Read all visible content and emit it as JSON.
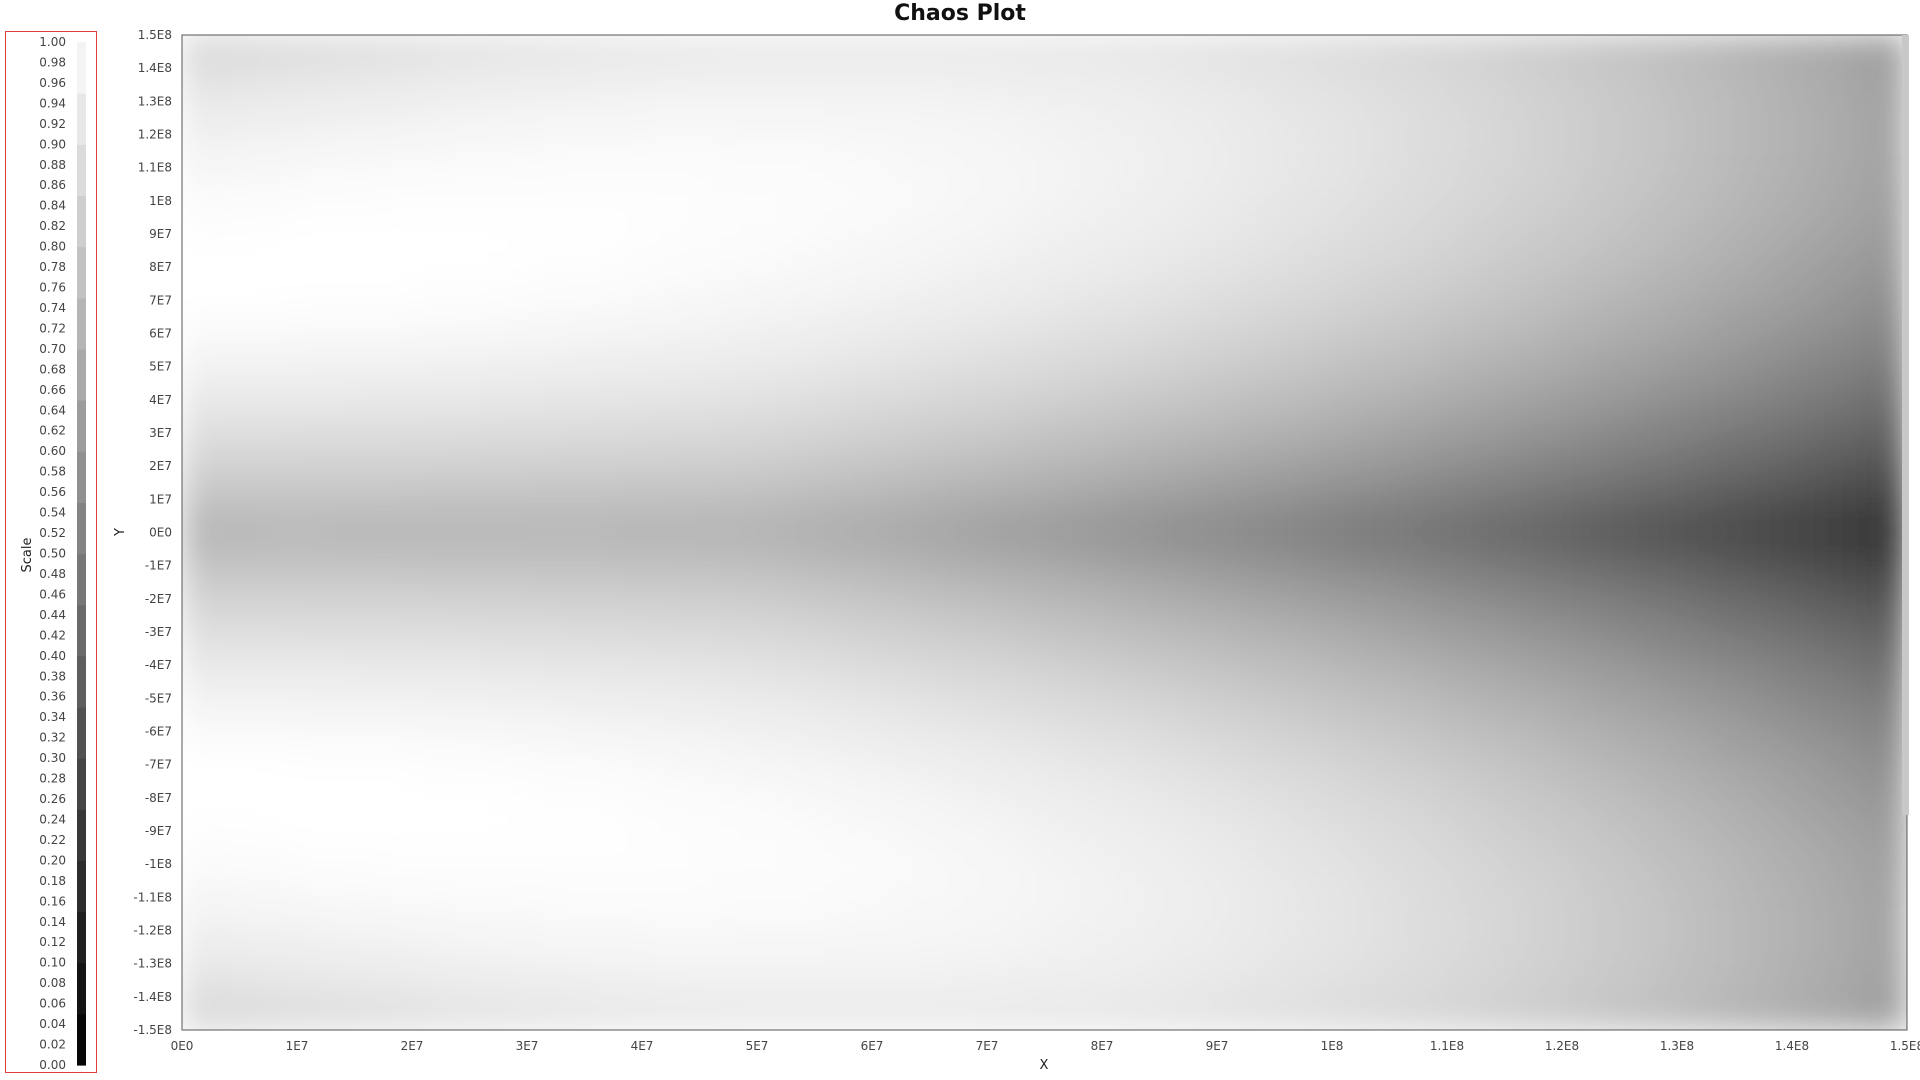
{
  "chart_data": {
    "type": "heatmap",
    "title": "Chaos Plot",
    "xlabel": "X",
    "ylabel": "Y",
    "xlim": [
      0,
      150000000
    ],
    "ylim": [
      -150000000,
      150000000
    ],
    "x_ticks": [
      "0E0",
      "1E7",
      "2E7",
      "3E7",
      "4E7",
      "5E7",
      "6E7",
      "7E7",
      "8E7",
      "9E7",
      "1E8",
      "1.1E8",
      "1.2E8",
      "1.3E8",
      "1.4E8",
      "1.5E8"
    ],
    "y_ticks": [
      "1.5E8",
      "1.4E8",
      "1.3E8",
      "1.2E8",
      "1.1E8",
      "1E8",
      "9E7",
      "8E7",
      "7E7",
      "6E7",
      "5E7",
      "4E7",
      "3E7",
      "2E7",
      "1E7",
      "0E0",
      "-1E7",
      "-2E7",
      "-3E7",
      "-4E7",
      "-5E7",
      "-6E7",
      "-7E7",
      "-8E7",
      "-9E7",
      "-1E8",
      "-1.1E8",
      "-1.2E8",
      "-1.3E8",
      "-1.4E8",
      "-1.5E8"
    ],
    "colorscale": {
      "label": "Scale",
      "range": [
        0,
        1
      ],
      "colors": [
        "#000000",
        "#ffffff"
      ],
      "ticks": [
        "1.00",
        "0.98",
        "0.96",
        "0.94",
        "0.92",
        "0.90",
        "0.88",
        "0.86",
        "0.84",
        "0.82",
        "0.80",
        "0.78",
        "0.76",
        "0.74",
        "0.72",
        "0.70",
        "0.68",
        "0.66",
        "0.64",
        "0.62",
        "0.60",
        "0.58",
        "0.56",
        "0.54",
        "0.52",
        "0.50",
        "0.48",
        "0.46",
        "0.44",
        "0.42",
        "0.40",
        "0.38",
        "0.36",
        "0.34",
        "0.32",
        "0.30",
        "0.28",
        "0.26",
        "0.24",
        "0.22",
        "0.20",
        "0.18",
        "0.16",
        "0.14",
        "0.12",
        "0.10",
        "0.08",
        "0.06",
        "0.04",
        "0.02",
        "0.00"
      ]
    },
    "grid": false,
    "legend_position": "left"
  },
  "colors": {
    "legend_border": "#e03c3c",
    "plot_border": "#555555"
  }
}
